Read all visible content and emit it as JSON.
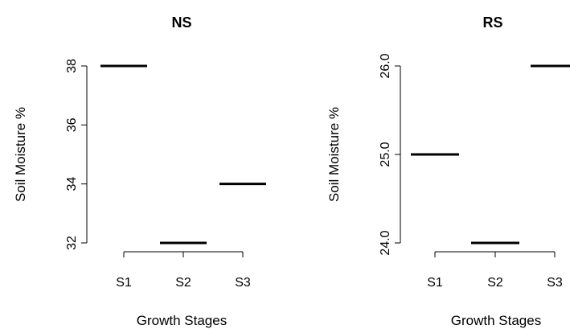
{
  "chart_data": [
    {
      "type": "line",
      "title": "NS",
      "xlabel": "Growth Stages",
      "ylabel": "Soil Moisture %",
      "categories": [
        "S1",
        "S2",
        "S3"
      ],
      "values": [
        38,
        32,
        34
      ],
      "yticks": [
        "32",
        "34",
        "36",
        "38"
      ],
      "ylim": [
        32,
        38
      ],
      "grid": false,
      "color": "#000000"
    },
    {
      "type": "line",
      "title": "RS",
      "xlabel": "Growth Stages",
      "ylabel": "Soil Moisture %",
      "categories": [
        "S1",
        "S2",
        "S3"
      ],
      "values": [
        25.0,
        24.0,
        26.0
      ],
      "yticks": [
        "24.0",
        "25.0",
        "26.0"
      ],
      "ylim": [
        24,
        26
      ],
      "grid": false,
      "color": "#000000"
    }
  ]
}
